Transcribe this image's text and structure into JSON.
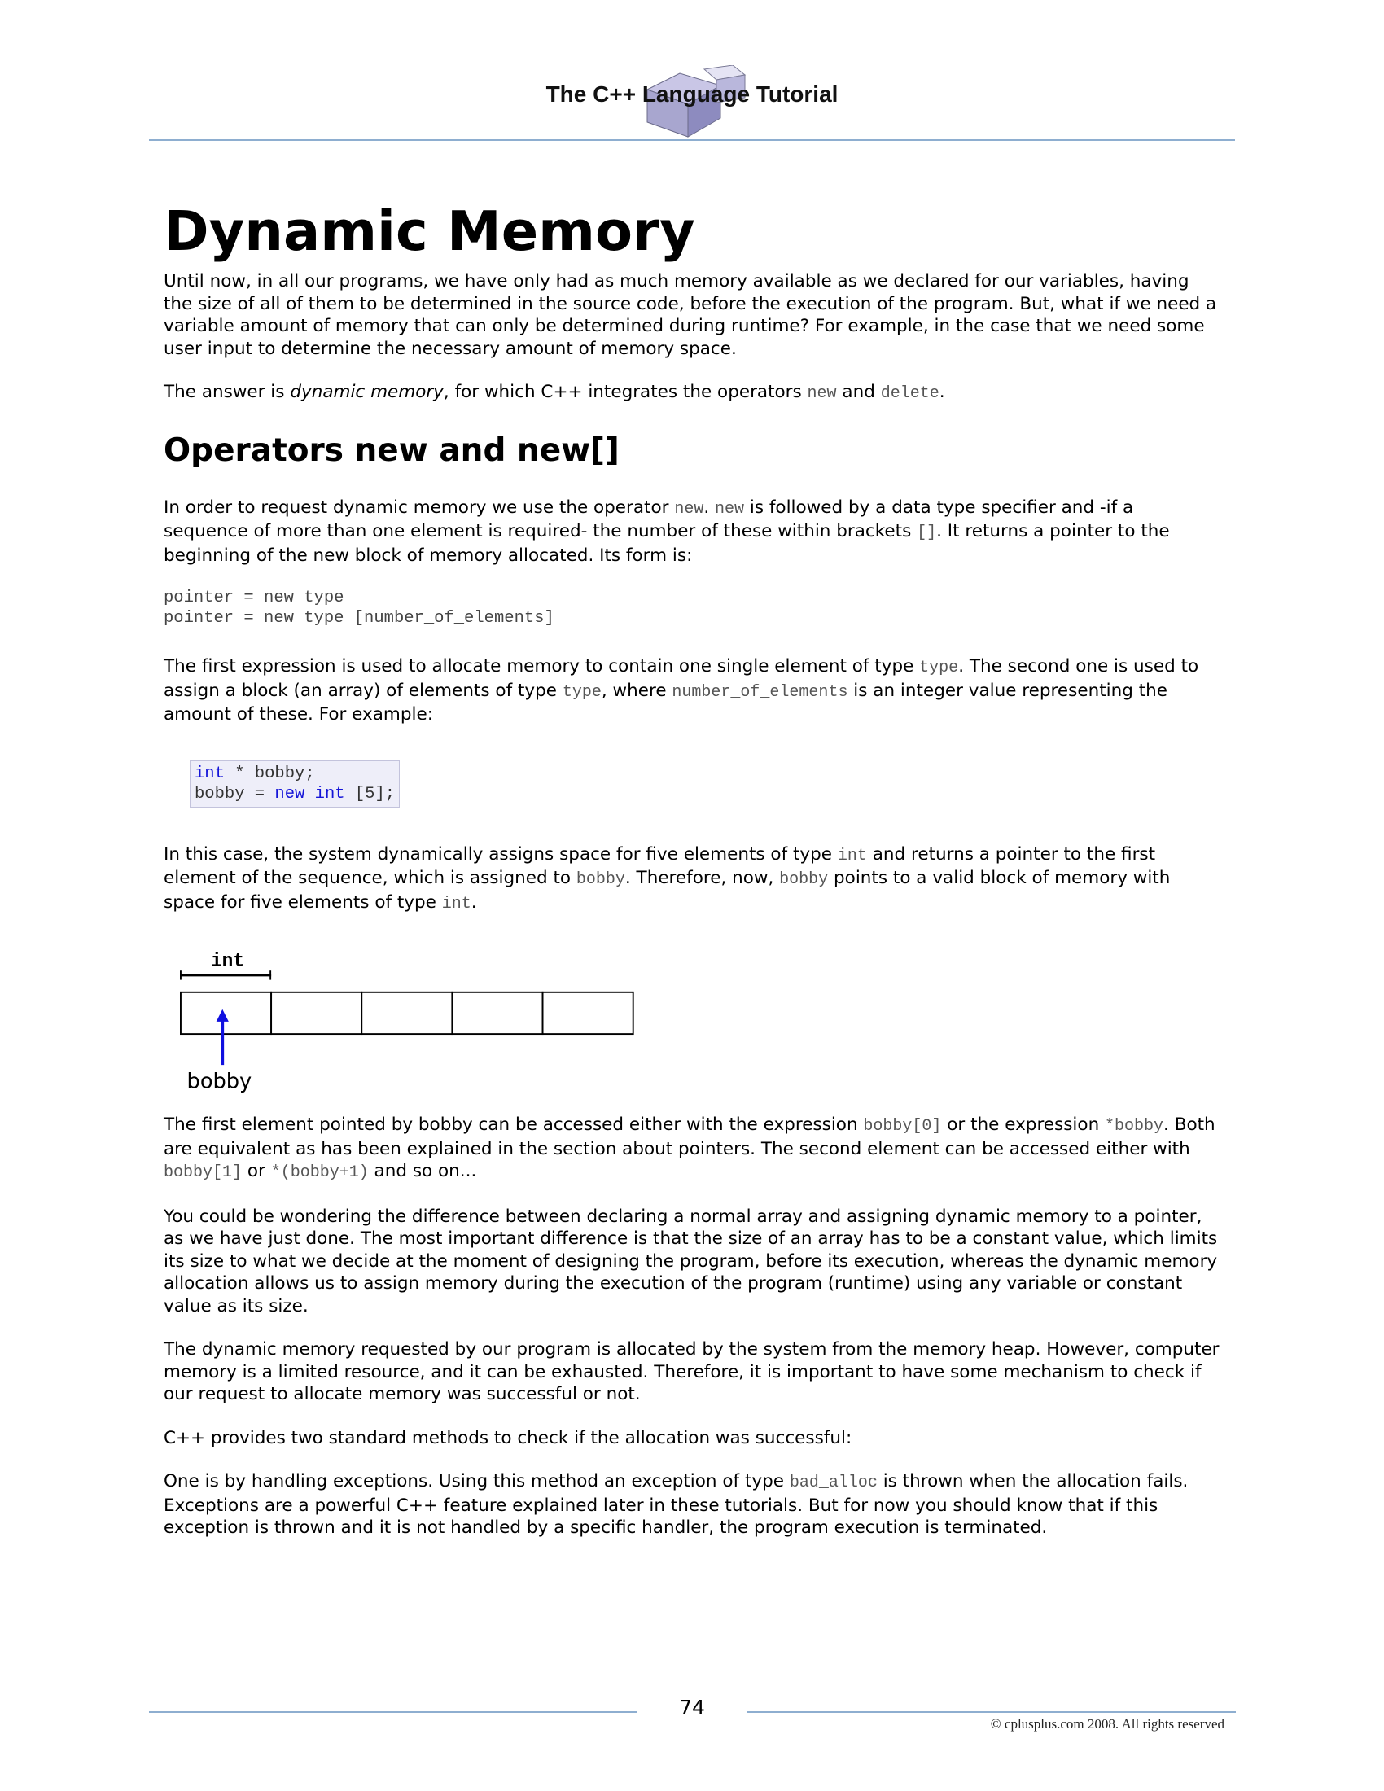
{
  "header": {
    "title": "The C++ Language Tutorial"
  },
  "heading": "Dynamic Memory",
  "intro": {
    "p1": "Until now, in all our programs, we have only had as much memory available as we declared for our variables, having the size of all of them to be determined in the source code, before the execution of the program. But, what if we need a variable amount of memory that can only be determined during runtime? For example, in the case that we need some user input to determine the necessary amount of memory space.",
    "p2_a": "The answer is ",
    "p2_em": "dynamic memory",
    "p2_b": ", for which C++ integrates the operators ",
    "p2_new": "new",
    "p2_and": " and ",
    "p2_delete": "delete",
    "p2_end": "."
  },
  "section": {
    "heading": "Operators new and new[]",
    "p1_a": "In order to request dynamic memory we use the operator ",
    "p1_new1": "new",
    "p1_dot": ". ",
    "p1_new2": "new",
    "p1_b": " is followed by a data type specifier and -if a sequence of more than one element is required- the number of these within brackets ",
    "p1_brackets": "[]",
    "p1_c": ". It returns a pointer to the beginning of the new block of memory allocated. Its form is:",
    "form_line1": "pointer = new type",
    "form_line2": "pointer = new type [number_of_elements]",
    "p2_a": "The first expression is used to allocate memory to contain one single element of type ",
    "p2_type1": "type",
    "p2_b": ". The second one is used to assign a block (an array) of elements of type ",
    "p2_type2": "type",
    "p2_c": ", where ",
    "p2_noe": "number_of_elements",
    "p2_d": " is an integer value representing the amount of these. For example:",
    "example": {
      "l1_kw": "int",
      "l1_rest": " * bobby;",
      "l2_a": "bobby = ",
      "l2_new": "new",
      "l2_sp": " ",
      "l2_int": "int",
      "l2_rest": " [5];"
    },
    "p3_a": "In this case, the system dynamically assigns space for five elements of type ",
    "p3_int": "int",
    "p3_b": " and returns a pointer to the first element of the sequence, which is assigned to ",
    "p3_bobby1": "bobby",
    "p3_c": ". Therefore, now, ",
    "p3_bobby2": "bobby",
    "p3_d": " points to a valid block of memory with space for five elements of type ",
    "p3_int2": "int",
    "p3_e": "."
  },
  "diagram": {
    "label_top": "int",
    "label_pointer": "bobby",
    "cells": 5,
    "arrow_color": "#1010e0"
  },
  "body2": {
    "p1_a": "The first element pointed by bobby can be accessed either with the expression ",
    "p1_code1": "bobby[0]",
    "p1_b": " or the expression ",
    "p1_code2": "*bobby",
    "p1_c": ". Both are equivalent as has been explained in the section about pointers. The second element can be accessed either with ",
    "p1_code3": "bobby[1]",
    "p1_d": " or ",
    "p1_code4": "*(bobby+1)",
    "p1_e": " and so on...",
    "p2": "You could be wondering the difference between declaring a normal array and assigning dynamic memory to a pointer, as we have just done. The most important difference is that the size of an array has to be a constant value, which limits its size to what we decide at the moment of designing the program, before its execution, whereas the dynamic memory allocation allows us to assign memory during the execution of the program (runtime) using any variable or constant value as its size.",
    "p3": "The dynamic memory requested by our program is allocated by the system from the memory heap. However, computer memory is a limited resource, and it can be exhausted. Therefore, it is important to have some mechanism to check if our request to allocate memory was successful or not.",
    "p4": "C++ provides two standard methods to check if the allocation was successful:",
    "p5_a": "One is by handling exceptions. Using this method an exception of type ",
    "p5_code": "bad_alloc",
    "p5_b": " is thrown when the allocation fails. Exceptions are a powerful C++ feature explained later in these tutorials. But for now you should know that if this exception is thrown and it is not handled by a specific handler, the program execution is terminated."
  },
  "footer": {
    "page_number": "74",
    "copyright": "© cplusplus.com 2008. All rights reserved"
  }
}
